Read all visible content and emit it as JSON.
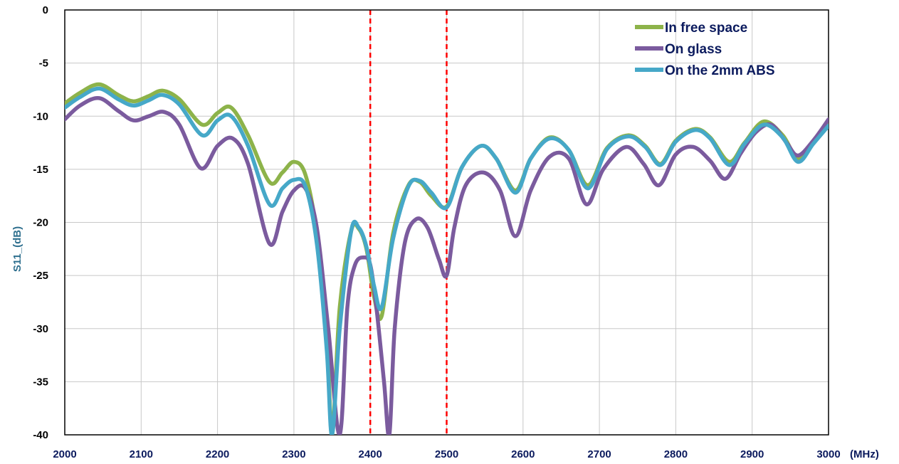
{
  "chart_data": {
    "type": "line",
    "title": "",
    "xlabel": "",
    "x_unit": "(MHz)",
    "ylabel": "S11_(dB)",
    "xlim": [
      2000,
      3000
    ],
    "ylim": [
      -40,
      0
    ],
    "xticks": [
      2000,
      2100,
      2200,
      2300,
      2400,
      2500,
      2600,
      2700,
      2800,
      2900,
      3000
    ],
    "yticks": [
      0,
      -5,
      -10,
      -15,
      -20,
      -25,
      -30,
      -35,
      -40
    ],
    "grid": true,
    "legend_position": "top-right",
    "reference_lines": [
      {
        "x": 2400,
        "color": "#ff0000",
        "style": "dashed"
      },
      {
        "x": 2500,
        "color": "#ff0000",
        "style": "dashed"
      }
    ],
    "series": [
      {
        "name": "In free space",
        "color": "#8db34a",
        "x": [
          2000,
          2020,
          2045,
          2070,
          2090,
          2110,
          2128,
          2150,
          2180,
          2200,
          2218,
          2240,
          2268,
          2285,
          2300,
          2315,
          2330,
          2343,
          2350,
          2360,
          2375,
          2385,
          2395,
          2405,
          2415,
          2430,
          2450,
          2465,
          2480,
          2500,
          2520,
          2545,
          2565,
          2590,
          2610,
          2635,
          2660,
          2685,
          2710,
          2738,
          2760,
          2780,
          2800,
          2825,
          2845,
          2870,
          2890,
          2915,
          2940,
          2960,
          2980,
          3000
        ],
        "y": [
          -8.8,
          -7.8,
          -7.0,
          -8.0,
          -8.6,
          -8.1,
          -7.6,
          -8.4,
          -10.8,
          -9.7,
          -9.2,
          -11.8,
          -16.2,
          -15.3,
          -14.3,
          -15.5,
          -21.0,
          -30.0,
          -40.0,
          -28.0,
          -20.8,
          -20.6,
          -22.5,
          -27.0,
          -28.8,
          -21.0,
          -16.5,
          -16.2,
          -17.5,
          -18.5,
          -14.8,
          -12.8,
          -14.0,
          -17.0,
          -14.0,
          -12.0,
          -13.2,
          -16.5,
          -13.0,
          -11.8,
          -12.8,
          -14.5,
          -12.3,
          -11.2,
          -12.0,
          -14.3,
          -12.5,
          -10.5,
          -11.8,
          -14.0,
          -12.5,
          -10.8
        ]
      },
      {
        "name": "On glass",
        "color": "#7b5b9e",
        "x": [
          2000,
          2020,
          2045,
          2070,
          2090,
          2110,
          2130,
          2150,
          2178,
          2200,
          2220,
          2240,
          2268,
          2285,
          2300,
          2315,
          2330,
          2345,
          2360,
          2370,
          2380,
          2392,
          2400,
          2408,
          2418,
          2425,
          2432,
          2445,
          2460,
          2475,
          2490,
          2500,
          2510,
          2525,
          2548,
          2570,
          2590,
          2610,
          2635,
          2660,
          2683,
          2705,
          2735,
          2758,
          2778,
          2800,
          2823,
          2845,
          2865,
          2885,
          2905,
          2925,
          2945,
          2960,
          2980,
          3000
        ],
        "y": [
          -10.3,
          -9.0,
          -8.3,
          -9.5,
          -10.4,
          -10.0,
          -9.6,
          -10.8,
          -14.9,
          -12.8,
          -12.1,
          -14.5,
          -22.0,
          -19.0,
          -17.0,
          -16.8,
          -20.5,
          -30.0,
          -40.0,
          -28.0,
          -24.0,
          -23.3,
          -24.0,
          -28.0,
          -35.0,
          -40.0,
          -30.0,
          -22.0,
          -19.7,
          -20.5,
          -23.5,
          -25.0,
          -20.5,
          -16.5,
          -15.3,
          -17.0,
          -21.3,
          -17.0,
          -13.8,
          -14.0,
          -18.3,
          -15.0,
          -12.9,
          -14.5,
          -16.5,
          -13.6,
          -12.9,
          -14.2,
          -15.9,
          -13.5,
          -11.5,
          -10.8,
          -12.5,
          -13.7,
          -12.3,
          -10.3
        ]
      },
      {
        "name": "On the 2mm ABS",
        "color": "#46a8c8",
        "x": [
          2000,
          2020,
          2045,
          2070,
          2090,
          2110,
          2128,
          2150,
          2180,
          2200,
          2218,
          2240,
          2268,
          2285,
          2300,
          2315,
          2330,
          2343,
          2350,
          2360,
          2375,
          2385,
          2395,
          2405,
          2415,
          2430,
          2450,
          2465,
          2480,
          2500,
          2520,
          2545,
          2565,
          2590,
          2610,
          2635,
          2660,
          2685,
          2710,
          2738,
          2760,
          2780,
          2800,
          2825,
          2845,
          2870,
          2890,
          2915,
          2940,
          2960,
          2980,
          3000
        ],
        "y": [
          -9.2,
          -8.2,
          -7.4,
          -8.4,
          -9.0,
          -8.5,
          -8.0,
          -8.9,
          -11.8,
          -10.4,
          -10.0,
          -12.8,
          -18.3,
          -16.8,
          -16.0,
          -16.6,
          -22.0,
          -32.0,
          -40.0,
          -30.0,
          -20.8,
          -20.5,
          -22.3,
          -26.0,
          -28.0,
          -21.5,
          -16.6,
          -16.1,
          -17.2,
          -18.6,
          -14.8,
          -12.8,
          -14.0,
          -17.2,
          -14.0,
          -12.1,
          -13.2,
          -16.8,
          -13.1,
          -11.9,
          -12.9,
          -14.6,
          -12.4,
          -11.3,
          -12.1,
          -14.6,
          -12.6,
          -10.8,
          -12.0,
          -14.3,
          -12.6,
          -10.9
        ]
      }
    ]
  }
}
